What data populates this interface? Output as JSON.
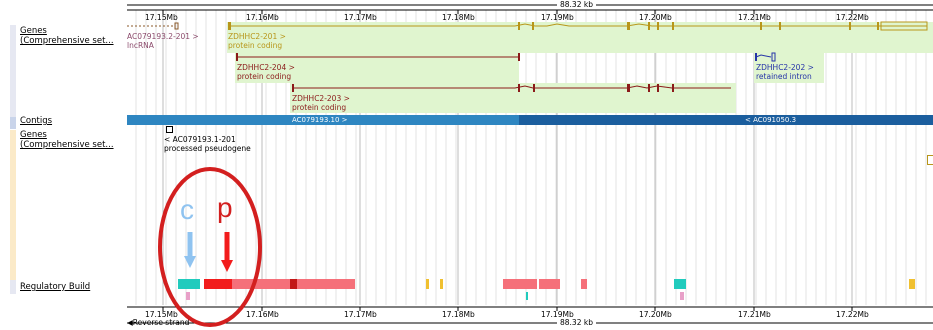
{
  "scale": {
    "total_label": "88.32 kb",
    "bottom_total_label": "88.32 kb",
    "ticks": [
      "17.15Mb",
      "17.16Mb",
      "17.17Mb",
      "17.18Mb",
      "17.19Mb",
      "17.20Mb",
      "17.21Mb",
      "17.22Mb"
    ],
    "strand_label": "Reverse strand"
  },
  "tracks": {
    "genes_label": "Genes\n(Comprehensive set...",
    "contigs_label": "Contigs",
    "genes2_label": "Genes\n(Comprehensive set...",
    "regulatory_label": "Regulatory Build"
  },
  "genes": {
    "ac079193_2": {
      "name": "AC079193.2-201 >",
      "type": "lncRNA"
    },
    "zdhhc2_201": {
      "name": "ZDHHC2-201 >",
      "type": "protein coding"
    },
    "zdhhc2_204": {
      "name": "ZDHHC2-204 >",
      "type": "protein coding"
    },
    "zdhhc2_203": {
      "name": "ZDHHC2-203 >",
      "type": "protein coding"
    },
    "zdhhc2_202": {
      "name": "ZDHHC2-202 >",
      "type": "retained intron"
    },
    "ac079193_1": {
      "name": "< AC079193.1-201",
      "type": "processed pseudogene"
    }
  },
  "contigs": {
    "left": "AC079193.10 >",
    "right": "< AC091050.3"
  },
  "annotation": {
    "c_label": "c",
    "p_label": "p"
  },
  "colors": {
    "gene_green": "#e0f5cf",
    "transcript_red": "#8b1a1a",
    "contig_blue": "#2e86c1",
    "contig_dark": "#1b5e9e",
    "promoter_red": "#f21c1c",
    "enhancer_pink": "#f5707a",
    "ctcf_cyan": "#21cbbd",
    "annotation_circle": "#d31f1f",
    "c_arrow": "#8fc3f0"
  }
}
